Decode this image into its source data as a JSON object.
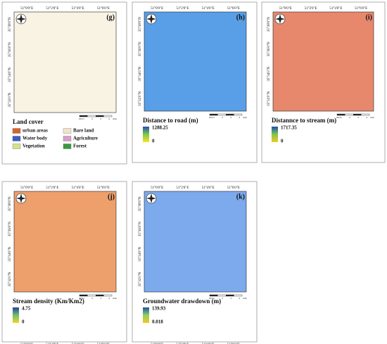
{
  "lon_ticks": [
    "51°0'0\"E",
    "51°2'0\"E",
    "51°4'0\"E",
    "51°6'0\"E"
  ],
  "lat_ticks": [
    "35°38'0\"N",
    "35°36'0\"N",
    "35°34'0\"N",
    "35°32'0\"N"
  ],
  "scale_bar": [
    "0",
    "0.5",
    "1",
    "2",
    "3",
    "4",
    "Km"
  ],
  "panels": [
    {
      "label": "(g)",
      "legend_title": "Land cover",
      "legend_items": [
        {
          "name": "urban areas",
          "color": "#d9622b"
        },
        {
          "name": "Bare land",
          "color": "#f3e4c6"
        },
        {
          "name": "Water body",
          "color": "#3b5fc0"
        },
        {
          "name": "Agriculture",
          "color": "#d9a0c8"
        },
        {
          "name": "Vegetation",
          "color": "#d8e08a"
        },
        {
          "name": "Forest",
          "color": "#3a9a3a"
        }
      ]
    },
    {
      "label": "(h)",
      "legend_title": "Distance to road (m)",
      "max": 1288.25,
      "min": 0
    },
    {
      "label": "(i)",
      "legend_title": "Distannce to stream (m)",
      "max": 1717.35,
      "min": 0
    },
    {
      "label": "(j)",
      "legend_title": "Stream density (Km/Km2)",
      "max": 4.75,
      "min": 0
    },
    {
      "label": "(k)",
      "legend_title": "Groundwater drawdown (m)",
      "max": 139.93,
      "min": 0.018
    }
  ]
}
